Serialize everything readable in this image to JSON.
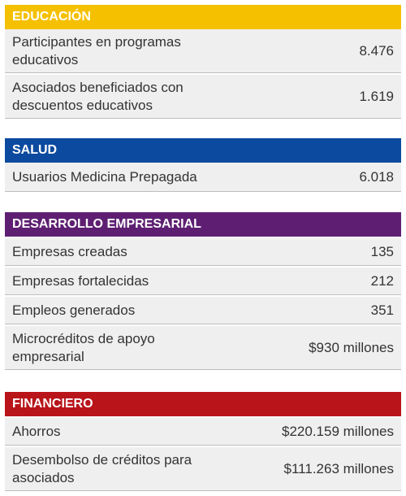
{
  "colors": {
    "educacion": "#f5c000",
    "salud": "#0b4a9e",
    "desarrollo": "#5e1f72",
    "financiero": "#b8141a",
    "row_bg": "#efefef"
  },
  "educacion": {
    "title": "EDUCACIÓN",
    "rows": [
      {
        "label": "Participantes en programas educativos",
        "value": "8.476"
      },
      {
        "label": "Asociados beneficiados con descuentos educativos",
        "value": "1.619"
      }
    ]
  },
  "salud": {
    "title": "SALUD",
    "rows": [
      {
        "label": "Usuarios Medicina Prepagada",
        "value": "6.018"
      }
    ]
  },
  "desarrollo": {
    "title": "DESARROLLO EMPRESARIAL",
    "rows": [
      {
        "label": "Empresas creadas",
        "value": "135"
      },
      {
        "label": "Empresas fortalecidas",
        "value": "212"
      },
      {
        "label": "Empleos generados",
        "value": "351"
      },
      {
        "label": "Microcréditos de apoyo empresarial",
        "value": "$930 millones"
      }
    ]
  },
  "financiero": {
    "title": "FINANCIERO",
    "rows": [
      {
        "label": "Ahorros",
        "value": "$220.159 millones"
      },
      {
        "label": "Desembolso de créditos para asociados",
        "value": "$111.263 millones"
      }
    ]
  }
}
